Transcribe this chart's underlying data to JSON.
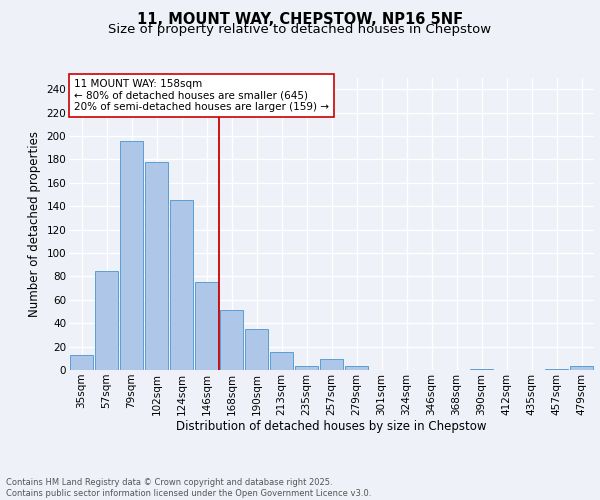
{
  "title_line1": "11, MOUNT WAY, CHEPSTOW, NP16 5NF",
  "title_line2": "Size of property relative to detached houses in Chepstow",
  "xlabel": "Distribution of detached houses by size in Chepstow",
  "ylabel": "Number of detached properties",
  "categories": [
    "35sqm",
    "57sqm",
    "79sqm",
    "102sqm",
    "124sqm",
    "146sqm",
    "168sqm",
    "190sqm",
    "213sqm",
    "235sqm",
    "257sqm",
    "279sqm",
    "301sqm",
    "324sqm",
    "346sqm",
    "368sqm",
    "390sqm",
    "412sqm",
    "435sqm",
    "457sqm",
    "479sqm"
  ],
  "values": [
    13,
    85,
    196,
    178,
    145,
    75,
    51,
    35,
    15,
    3,
    9,
    3,
    0,
    0,
    0,
    0,
    1,
    0,
    0,
    1,
    3
  ],
  "bar_color": "#aec6e8",
  "bar_edge_color": "#5a9fd4",
  "vline_x": 5.5,
  "vline_color": "#cc0000",
  "annotation_text": "11 MOUNT WAY: 158sqm\n← 80% of detached houses are smaller (645)\n20% of semi-detached houses are larger (159) →",
  "annotation_box_color": "#ffffff",
  "annotation_box_edge": "#cc0000",
  "ylim": [
    0,
    250
  ],
  "yticks": [
    0,
    20,
    40,
    60,
    80,
    100,
    120,
    140,
    160,
    180,
    200,
    220,
    240
  ],
  "background_color": "#eef2f8",
  "footer_text": "Contains HM Land Registry data © Crown copyright and database right 2025.\nContains public sector information licensed under the Open Government Licence v3.0.",
  "title_fontsize": 10.5,
  "subtitle_fontsize": 9.5,
  "axis_label_fontsize": 8.5,
  "tick_fontsize": 7.5,
  "annotation_fontsize": 7.5,
  "footer_fontsize": 6.0
}
